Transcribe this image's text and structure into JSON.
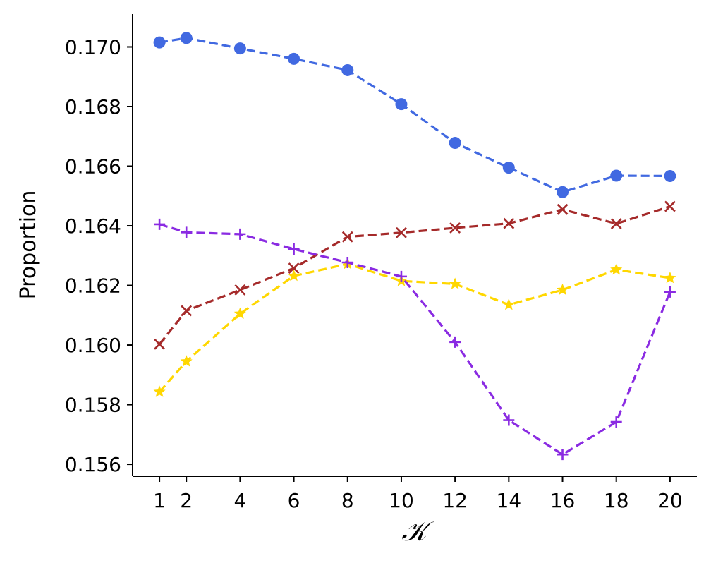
{
  "chart_data": {
    "type": "line",
    "x": [
      1,
      2,
      4,
      6,
      8,
      10,
      12,
      14,
      16,
      18,
      20
    ],
    "xticks": [
      "1",
      "2",
      "4",
      "6",
      "8",
      "10",
      "12",
      "14",
      "16",
      "18",
      "20"
    ],
    "yticks": [
      "0.156",
      "0.158",
      "0.160",
      "0.162",
      "0.164",
      "0.166",
      "0.168",
      "0.170"
    ],
    "xlabel": "𝒦",
    "ylabel": "Proportion",
    "xlim": [
      0.0,
      21.0
    ],
    "ylim": [
      0.1556,
      0.1711
    ],
    "grid": false,
    "series": [
      {
        "color": "#4169e1",
        "marker": "circle",
        "values": [
          0.17015,
          0.1703,
          0.16995,
          0.1696,
          0.16922,
          0.16808,
          0.16678,
          0.16595,
          0.16513,
          0.16568,
          0.16567
        ]
      },
      {
        "color": "#a52a2a",
        "marker": "x",
        "values": [
          0.16003,
          0.16115,
          0.16185,
          0.16258,
          0.16363,
          0.16377,
          0.16393,
          0.16408,
          0.16455,
          0.16407,
          0.16465
        ]
      },
      {
        "color": "#ffd700",
        "marker": "star",
        "values": [
          0.15843,
          0.15945,
          0.16105,
          0.16232,
          0.16272,
          0.16215,
          0.16205,
          0.16135,
          0.16185,
          0.16253,
          0.16225
        ]
      },
      {
        "color": "#8a2be2",
        "marker": "plus",
        "values": [
          0.16405,
          0.16378,
          0.16372,
          0.16322,
          0.16277,
          0.1623,
          0.1601,
          0.15748,
          0.15633,
          0.15742,
          0.16178
        ]
      }
    ]
  }
}
